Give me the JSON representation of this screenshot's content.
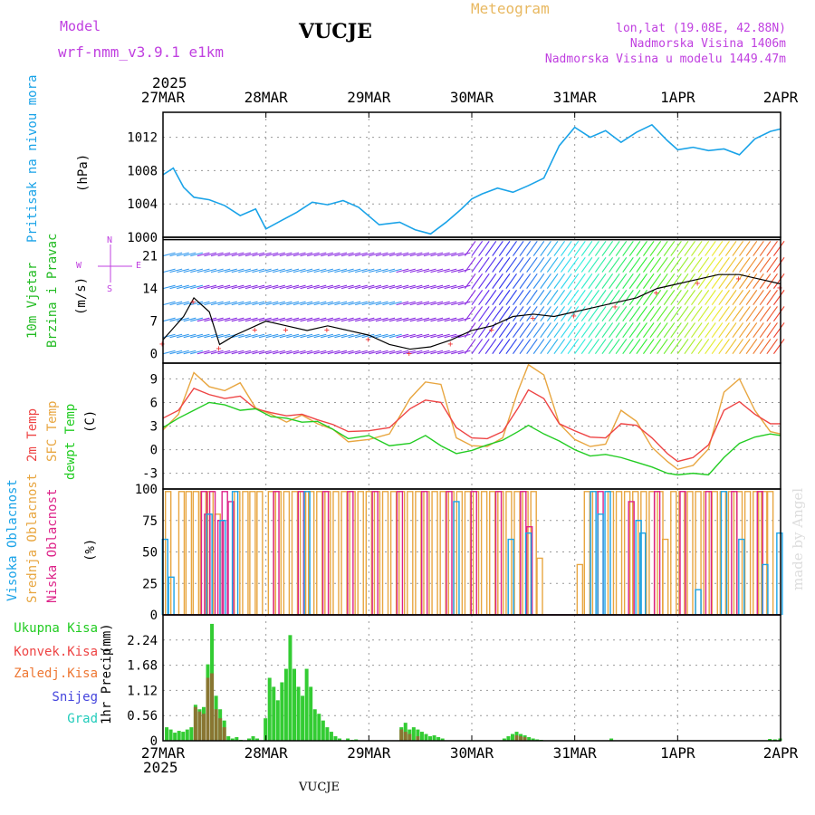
{
  "header": {
    "model_label": "Model",
    "model_name": "wrf-nmm_v3.9.1 e1km",
    "station": "VUCJE",
    "chart_kind": "Meteogram",
    "coords": "lon,lat (19.08E, 42.88N)",
    "elevation": "Nadmorska Visina 1406m",
    "model_elevation": "Nadmorska Visina u modelu 1449.47m",
    "year_top": "2025",
    "year_bottom": "2025",
    "footer_station": "VUCJE",
    "watermark": "made by Angel"
  },
  "colors": {
    "pressure": "#1aa3e8",
    "temp2m": "#ee4444",
    "sfc": "#e8a640",
    "dewpt": "#22cc22",
    "wind_black": "#000000",
    "wind_red": "#ee3333",
    "cloud_high": "#1aa3e8",
    "cloud_mid": "#e8a640",
    "cloud_low": "#dd2288",
    "precip_total": "#33cc33",
    "precip_conv": "#ee3333",
    "label_magenta": "#c040e0",
    "label_orange": "#e8b860"
  },
  "chart_data": [
    {
      "type": "line",
      "panel": "pressure",
      "ylabel": "Pritisak na nivou mora",
      "unit": "(hPa)",
      "yticks": [
        "1000",
        "1004",
        "1008",
        "1012"
      ],
      "ylim": [
        1000,
        1015
      ],
      "xlabels": [
        "27MAR",
        "28MAR",
        "29MAR",
        "30MAR",
        "31MAR",
        "1APR",
        "2APR"
      ],
      "series": [
        {
          "x": [
            0,
            0.1,
            0.2,
            0.3,
            0.45,
            0.6,
            0.75,
            0.9,
            1.0,
            1.15,
            1.3,
            1.45,
            1.6,
            1.75,
            1.9,
            2.1,
            2.3,
            2.45,
            2.6,
            2.75,
            2.9,
            3.0,
            3.1,
            3.25,
            3.4,
            3.55,
            3.7,
            3.85,
            4.0,
            4.15,
            4.3,
            4.45,
            4.6,
            4.75,
            4.9,
            5.0,
            5.15,
            5.3,
            5.45,
            5.6,
            5.75,
            5.9,
            6.0
          ],
          "values": [
            1007.5,
            1008.3,
            1006.0,
            1004.8,
            1004.5,
            1003.8,
            1002.6,
            1003.4,
            1001.0,
            1002.0,
            1003.0,
            1004.2,
            1003.9,
            1004.4,
            1003.6,
            1001.5,
            1001.8,
            1000.9,
            1000.4,
            1001.8,
            1003.4,
            1004.6,
            1005.2,
            1005.9,
            1005.4,
            1006.2,
            1007.1,
            1011.0,
            1013.2,
            1012.0,
            1012.8,
            1011.4,
            1012.6,
            1013.5,
            1011.6,
            1010.5,
            1010.8,
            1010.4,
            1010.6,
            1009.9,
            1011.8,
            1012.7,
            1013.0
          ]
        }
      ]
    },
    {
      "type": "line",
      "panel": "wind",
      "ylabel": "10m Vjetar",
      "ylabel2": "Brzina i Pravac",
      "unit": "(m/s)",
      "yticks": [
        "0",
        "7",
        "14",
        "21"
      ],
      "ylim": [
        -2,
        25
      ],
      "compass": [
        "N",
        "W",
        "<-",
        "-",
        ">",
        "E",
        "S"
      ],
      "xlabels": [
        "27MAR",
        "28MAR",
        "29MAR",
        "30MAR",
        "31MAR",
        "1APR",
        "2APR"
      ],
      "series": [
        {
          "name": "speed",
          "x": [
            0,
            0.2,
            0.3,
            0.45,
            0.55,
            0.7,
            0.9,
            1.0,
            1.2,
            1.4,
            1.6,
            1.8,
            2.0,
            2.2,
            2.4,
            2.6,
            2.8,
            3.0,
            3.2,
            3.4,
            3.6,
            3.8,
            4.0,
            4.2,
            4.4,
            4.6,
            4.8,
            5.0,
            5.2,
            5.4,
            5.6,
            5.8,
            6.0
          ],
          "values": [
            3,
            8,
            12,
            9,
            2,
            4,
            6,
            7,
            6,
            5,
            6,
            5,
            4,
            2,
            1,
            1.5,
            3,
            5,
            6,
            8,
            8.5,
            8,
            9,
            10,
            11,
            12,
            14,
            15,
            16,
            17,
            17,
            16,
            15
          ]
        }
      ]
    },
    {
      "type": "line",
      "panel": "temperature",
      "labels": [
        "2m Temp",
        "SFC Temp",
        "dewpt Temp"
      ],
      "unit": "(C)",
      "yticks": [
        "-3",
        "0",
        "3",
        "6",
        "9"
      ],
      "ylim": [
        -5,
        11
      ],
      "xlabels": [
        "27MAR",
        "28MAR",
        "29MAR",
        "30MAR",
        "31MAR",
        "1APR",
        "2APR"
      ],
      "series": [
        {
          "name": "2m Temp",
          "x": [
            0,
            0.15,
            0.3,
            0.45,
            0.6,
            0.75,
            0.9,
            1.05,
            1.2,
            1.35,
            1.5,
            1.65,
            1.8,
            2.0,
            2.2,
            2.4,
            2.55,
            2.7,
            2.85,
            3.0,
            3.15,
            3.3,
            3.45,
            3.55,
            3.7,
            3.85,
            4.0,
            4.15,
            4.3,
            4.45,
            4.6,
            4.75,
            4.9,
            5.0,
            5.15,
            5.3,
            5.45,
            5.6,
            5.75,
            5.9,
            6.0
          ],
          "values": [
            4.0,
            5.0,
            7.8,
            7.0,
            6.5,
            6.8,
            5.2,
            4.7,
            4.3,
            4.5,
            3.8,
            3.2,
            2.3,
            2.4,
            2.8,
            5.2,
            6.3,
            6.0,
            2.8,
            1.5,
            1.4,
            2.3,
            5.3,
            7.6,
            6.5,
            3.3,
            2.4,
            1.6,
            1.5,
            3.3,
            3.1,
            1.5,
            -0.5,
            -1.5,
            -1.0,
            0.6,
            5.0,
            6.1,
            4.5,
            3.3,
            3.3
          ]
        },
        {
          "name": "SFC Temp",
          "x": [
            0,
            0.15,
            0.3,
            0.45,
            0.6,
            0.75,
            0.9,
            1.05,
            1.2,
            1.35,
            1.5,
            1.65,
            1.8,
            2.0,
            2.2,
            2.4,
            2.55,
            2.7,
            2.85,
            3.0,
            3.15,
            3.3,
            3.45,
            3.55,
            3.7,
            3.85,
            4.0,
            4.15,
            4.3,
            4.45,
            4.6,
            4.75,
            4.9,
            5.0,
            5.15,
            5.3,
            5.45,
            5.6,
            5.75,
            5.9,
            6.0
          ],
          "values": [
            2.5,
            4.5,
            9.8,
            8.0,
            7.5,
            8.5,
            5.3,
            4.5,
            3.5,
            4.4,
            3.3,
            2.6,
            1.0,
            1.3,
            2.0,
            6.5,
            8.6,
            8.3,
            1.5,
            0.5,
            0.4,
            1.5,
            7.5,
            10.8,
            9.5,
            3.3,
            1.3,
            0.4,
            0.7,
            5.0,
            3.6,
            0.3,
            -1.5,
            -2.5,
            -2.0,
            0.1,
            7.3,
            9.0,
            5.0,
            2.3,
            2.0
          ]
        },
        {
          "name": "dewpt Temp",
          "x": [
            0,
            0.15,
            0.3,
            0.45,
            0.6,
            0.75,
            0.9,
            1.05,
            1.2,
            1.35,
            1.5,
            1.65,
            1.8,
            2.0,
            2.2,
            2.4,
            2.55,
            2.7,
            2.85,
            3.0,
            3.15,
            3.3,
            3.45,
            3.55,
            3.7,
            3.85,
            4.0,
            4.15,
            4.3,
            4.45,
            4.6,
            4.75,
            4.9,
            5.0,
            5.15,
            5.3,
            5.45,
            5.6,
            5.75,
            5.9,
            6.0
          ],
          "values": [
            2.8,
            4.0,
            5.0,
            6.0,
            5.7,
            5.0,
            5.2,
            4.2,
            4.0,
            3.5,
            3.6,
            2.6,
            1.4,
            1.8,
            0.5,
            0.8,
            1.8,
            0.5,
            -0.5,
            -0.1,
            0.6,
            1.2,
            2.3,
            3.1,
            2.0,
            1.1,
            0.0,
            -0.8,
            -0.6,
            -1.0,
            -1.6,
            -2.2,
            -3.0,
            -3.2,
            -3.0,
            -3.2,
            -1.0,
            0.8,
            1.6,
            2.0,
            1.8
          ]
        }
      ]
    },
    {
      "type": "bar",
      "panel": "cloudiness",
      "labels": [
        "Visoka Oblacnost",
        "Srednja Oblacnost",
        "Niska Oblacnost"
      ],
      "unit": "(%)",
      "yticks": [
        "0",
        "25",
        "50",
        "75",
        "100"
      ],
      "ylim": [
        0,
        100
      ],
      "xlabels": [
        "27MAR",
        "28MAR",
        "29MAR",
        "30MAR",
        "31MAR",
        "1APR",
        "2APR"
      ],
      "series": [
        {
          "name": "Srednja Oblacnost",
          "x": [
            0.05,
            0.18,
            0.25,
            0.32,
            0.39,
            0.46,
            0.53,
            0.72,
            0.8,
            0.87,
            0.94,
            1.05,
            1.12,
            1.2,
            1.28,
            1.36,
            1.44,
            1.52,
            1.6,
            1.68,
            1.76,
            1.84,
            1.92,
            2.0,
            2.08,
            2.16,
            2.24,
            2.32,
            2.4,
            2.48,
            2.56,
            2.64,
            2.72,
            2.8,
            2.88,
            2.96,
            3.04,
            3.12,
            3.2,
            3.28,
            3.36,
            3.44,
            3.52,
            3.6,
            3.66,
            4.05,
            4.12,
            4.2,
            4.35,
            4.43,
            4.51,
            4.59,
            4.67,
            4.75,
            4.83,
            4.88,
            4.96,
            5.04,
            5.12,
            5.2,
            5.28,
            5.36,
            5.44,
            5.52,
            5.6,
            5.68,
            5.76,
            5.84,
            5.9
          ],
          "values": [
            98,
            98,
            98,
            98,
            98,
            98,
            80,
            98,
            98,
            98,
            98,
            98,
            98,
            98,
            98,
            98,
            98,
            98,
            98,
            98,
            98,
            98,
            98,
            98,
            98,
            98,
            98,
            98,
            98,
            98,
            98,
            98,
            98,
            98,
            98,
            98,
            98,
            98,
            98,
            98,
            98,
            98,
            98,
            98,
            45,
            40,
            98,
            98,
            98,
            98,
            98,
            98,
            98,
            98,
            98,
            60,
            98,
            98,
            98,
            98,
            98,
            98,
            98,
            98,
            98,
            98,
            98,
            98,
            98
          ]
        },
        {
          "name": "Niska Oblacnost",
          "x": [
            0.4,
            0.43,
            0.48,
            0.56,
            0.6,
            0.66,
            1.1,
            1.34,
            1.58,
            1.82,
            2.06,
            2.3,
            2.54,
            2.78,
            3.02,
            3.26,
            3.5,
            3.56,
            4.25,
            4.55,
            4.8,
            5.05,
            5.3,
            5.55,
            5.8
          ],
          "values": [
            98,
            80,
            98,
            75,
            98,
            90,
            98,
            98,
            98,
            98,
            98,
            98,
            98,
            98,
            98,
            98,
            98,
            70,
            98,
            90,
            98,
            98,
            98,
            98,
            98
          ]
        },
        {
          "name": "Visoka Oblacnost",
          "x": [
            0.02,
            0.08,
            0.45,
            0.58,
            0.7,
            1.4,
            2.85,
            3.38,
            3.55,
            4.18,
            4.25,
            4.32,
            4.62,
            4.66,
            5.2,
            5.45,
            5.62,
            5.85,
            5.99
          ],
          "values": [
            60,
            30,
            80,
            75,
            98,
            98,
            90,
            60,
            65,
            98,
            80,
            98,
            75,
            65,
            20,
            98,
            60,
            40,
            65
          ]
        }
      ]
    },
    {
      "type": "bar",
      "panel": "precipitation",
      "labels": [
        "Ukupna Kisa",
        "Konvek.Kisa",
        "Zaledj.Kisa",
        "Snijeg",
        "Grad"
      ],
      "ylabel": "1hr Precip",
      "unit": "(mm)",
      "yticks": [
        "0",
        "0.56",
        "1.12",
        "1.68",
        "2.24"
      ],
      "ylim": [
        0,
        2.8
      ],
      "xlabels": [
        "27MAR",
        "28MAR",
        "29MAR",
        "30MAR",
        "31MAR",
        "1APR",
        "2APR"
      ],
      "series": [
        {
          "name": "Ukupna Kisa",
          "x": [
            0.04,
            0.08,
            0.12,
            0.16,
            0.2,
            0.24,
            0.28,
            0.32,
            0.36,
            0.4,
            0.44,
            0.48,
            0.52,
            0.56,
            0.6,
            0.64,
            0.68,
            0.72,
            0.76,
            0.8,
            0.84,
            0.88,
            0.92,
            0.96,
            1.0,
            1.04,
            1.08,
            1.12,
            1.16,
            1.2,
            1.24,
            1.28,
            1.32,
            1.36,
            1.4,
            1.44,
            1.48,
            1.52,
            1.56,
            1.6,
            1.64,
            1.68,
            1.72,
            1.76,
            1.8,
            1.84,
            1.88,
            2.32,
            2.36,
            2.4,
            2.44,
            2.48,
            2.52,
            2.56,
            2.6,
            2.64,
            2.68,
            2.72,
            3.32,
            3.36,
            3.4,
            3.44,
            3.48,
            3.52,
            3.56,
            3.6,
            3.64,
            3.68,
            4.36,
            5.9,
            5.95,
            6.0
          ],
          "values": [
            0.3,
            0.25,
            0.18,
            0.22,
            0.2,
            0.25,
            0.3,
            0.8,
            0.7,
            0.75,
            1.7,
            2.6,
            1.0,
            0.7,
            0.45,
            0.1,
            0.05,
            0.08,
            0.02,
            0.0,
            0.05,
            0.1,
            0.05,
            0.0,
            0.5,
            1.4,
            1.2,
            0.9,
            1.3,
            1.6,
            2.35,
            1.6,
            1.2,
            1.0,
            1.6,
            1.2,
            0.7,
            0.6,
            0.45,
            0.3,
            0.2,
            0.1,
            0.05,
            0.0,
            0.05,
            0.02,
            0.03,
            0.3,
            0.4,
            0.25,
            0.3,
            0.25,
            0.2,
            0.15,
            0.1,
            0.12,
            0.08,
            0.05,
            0.05,
            0.1,
            0.15,
            0.2,
            0.15,
            0.12,
            0.08,
            0.05,
            0.03,
            0.02,
            0.05,
            0.04,
            0.03,
            0.05
          ]
        },
        {
          "name": "Konvek.Kisa",
          "x": [
            0.32,
            0.36,
            0.4,
            0.44,
            0.48,
            0.52,
            0.56,
            0.6,
            2.32,
            2.36,
            2.4,
            2.48,
            3.44,
            3.48,
            3.52
          ],
          "values": [
            0.75,
            0.65,
            0.6,
            1.4,
            1.5,
            0.7,
            0.5,
            0.3,
            0.25,
            0.2,
            0.15,
            0.1,
            0.12,
            0.1,
            0.08
          ]
        }
      ]
    }
  ]
}
